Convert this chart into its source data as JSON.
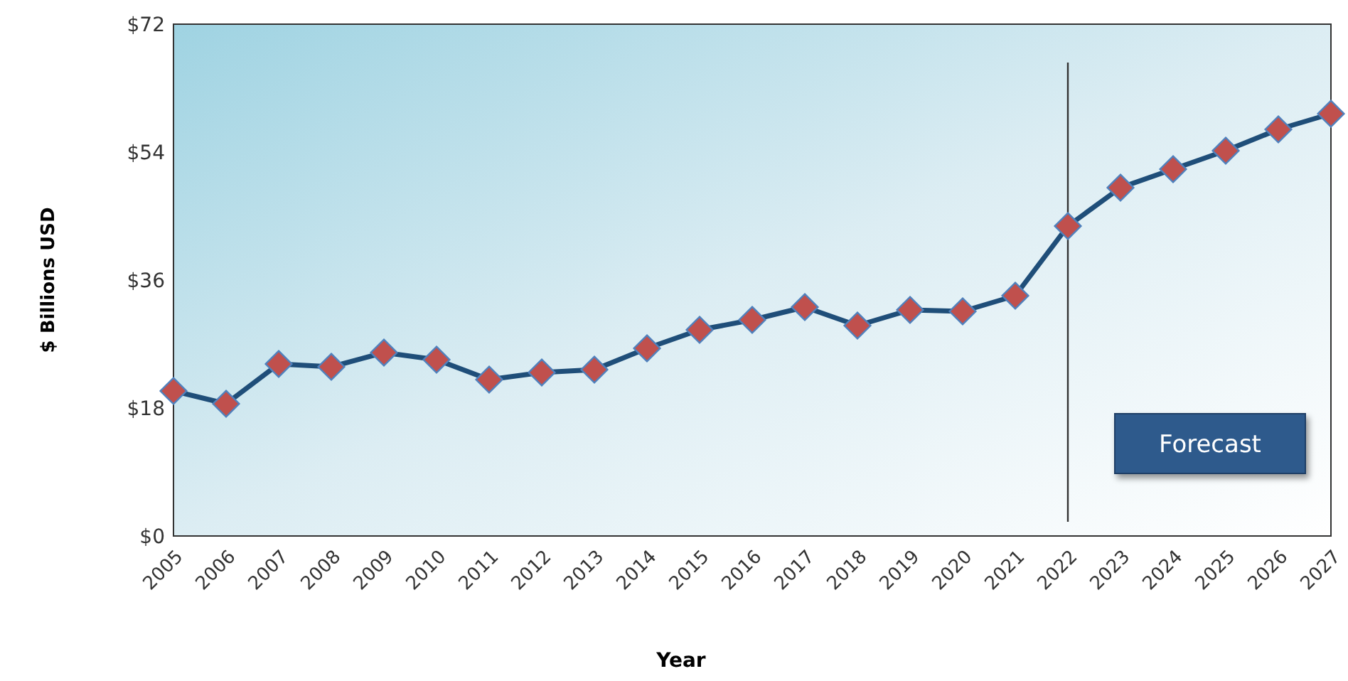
{
  "chart_data": {
    "type": "line",
    "xlabel": "Year",
    "ylabel": "$ Billions USD",
    "categories": [
      "2005",
      "2006",
      "2007",
      "2008",
      "2009",
      "2010",
      "2011",
      "2012",
      "2013",
      "2014",
      "2015",
      "2016",
      "2017",
      "2018",
      "2019",
      "2020",
      "2021",
      "2022",
      "2023",
      "2024",
      "2025",
      "2026",
      "2027"
    ],
    "series": [
      {
        "color": "#1f4e79",
        "values": [
          20.4,
          18.6,
          24.2,
          23.8,
          25.8,
          24.8,
          22,
          23,
          23.4,
          26.4,
          29,
          30.4,
          32.2,
          29.6,
          31.8,
          31.6,
          33.8,
          43.6,
          49,
          51.6,
          54.2,
          57.2,
          59.4
        ]
      }
    ],
    "ylim": [
      0,
      72
    ],
    "yticks": [
      {
        "value": 0,
        "label": "$0"
      },
      {
        "value": 18,
        "label": "$18"
      },
      {
        "value": 36,
        "label": "$36"
      },
      {
        "value": 54,
        "label": "$54"
      },
      {
        "value": 72,
        "label": "$72"
      }
    ],
    "ref_lines": [
      {
        "axis": "x",
        "value": "2022",
        "color": "#333333"
      }
    ],
    "annotations": [
      "Forecast"
    ],
    "marker": "diamond",
    "grid": false
  }
}
